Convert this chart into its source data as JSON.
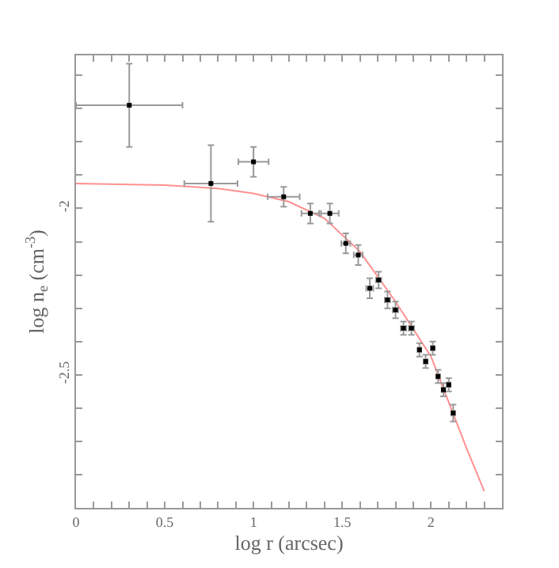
{
  "chart_data": {
    "type": "scatter",
    "xlabel": "log r (arcsec)",
    "ylabel": "log n$_{e}$ (cm$^{-3}$)",
    "xlim": [
      0,
      2.4
    ],
    "ylim": [
      -2.9,
      -1.54
    ],
    "xticks": [
      0,
      {
        "value": 0.1,
        "label": null
      },
      {
        "value": 0.2,
        "label": null
      },
      {
        "value": 0.3,
        "label": null
      },
      {
        "value": 0.4,
        "label": null
      },
      0.5,
      {
        "value": 0.6,
        "label": null
      },
      {
        "value": 0.7,
        "label": null
      },
      {
        "value": 0.8,
        "label": null
      },
      {
        "value": 0.9,
        "label": null
      },
      1,
      {
        "value": 1.1,
        "label": null
      },
      {
        "value": 1.2,
        "label": null
      },
      {
        "value": 1.3,
        "label": null
      },
      {
        "value": 1.4,
        "label": null
      },
      1.5,
      {
        "value": 1.6,
        "label": null
      },
      {
        "value": 1.7,
        "label": null
      },
      {
        "value": 1.8,
        "label": null
      },
      {
        "value": 1.9,
        "label": null
      },
      2,
      {
        "value": 2.1,
        "label": null
      },
      {
        "value": 2.2,
        "label": null
      },
      {
        "value": 2.3,
        "label": null
      }
    ],
    "yticks": [
      {
        "value": -2.9,
        "label": null
      },
      {
        "value": -2.8,
        "label": null
      },
      {
        "value": -2.7,
        "label": null
      },
      {
        "value": -2.6,
        "label": null
      },
      -2.5,
      {
        "value": -2.4,
        "label": null
      },
      {
        "value": -2.3,
        "label": null
      },
      {
        "value": -2.2,
        "label": null
      },
      {
        "value": -2.1,
        "label": null
      },
      -2,
      {
        "value": -1.9,
        "label": null
      },
      {
        "value": -1.8,
        "label": null
      },
      {
        "value": -1.7,
        "label": null
      },
      {
        "value": -1.6,
        "label": null
      }
    ],
    "series": [
      {
        "color": "#000000",
        "marker": "square",
        "x": [
          0.3,
          0.76,
          1.0,
          1.17,
          1.32,
          1.43,
          1.52,
          1.59,
          1.655,
          1.705,
          1.755,
          1.8,
          1.845,
          1.89,
          1.935,
          1.97,
          2.01,
          2.04,
          2.07,
          2.1,
          2.125
        ],
        "values": [
          -1.69,
          -1.925,
          -1.86,
          -1.965,
          -2.015,
          -2.015,
          -2.105,
          -2.14,
          -2.24,
          -2.215,
          -2.275,
          -2.305,
          -2.36,
          -2.36,
          -2.425,
          -2.46,
          -2.42,
          -2.505,
          -2.545,
          -2.53,
          -2.615
        ],
        "errors": [
          0.125,
          0.115,
          0.045,
          0.03,
          0.03,
          0.03,
          0.03,
          0.03,
          0.03,
          0.025,
          0.025,
          0.025,
          0.02,
          0.02,
          0.02,
          0.02,
          0.02,
          0.02,
          0.02,
          0.02,
          0.025
        ],
        "xerrors": [
          0.3,
          0.15,
          0.085,
          0.09,
          0.05,
          0.05,
          0.025,
          0.025,
          0.02,
          0.015,
          0.015,
          0.015,
          0.015,
          0.015,
          0.01,
          0.01,
          0.01,
          0.01,
          0.01,
          0.01,
          0.01
        ]
      },
      {
        "type": "line",
        "color": "#ff9090",
        "marker": "none",
        "line_style": "solid",
        "x": [
          0,
          0.5,
          0.8,
          1.0,
          1.2,
          1.4,
          1.6,
          1.8,
          2.0,
          2.2,
          2.3
        ],
        "values": [
          -1.925,
          -1.93,
          -1.94,
          -1.955,
          -1.98,
          -2.03,
          -2.13,
          -2.28,
          -2.445,
          -2.72,
          -2.85
        ]
      }
    ]
  }
}
